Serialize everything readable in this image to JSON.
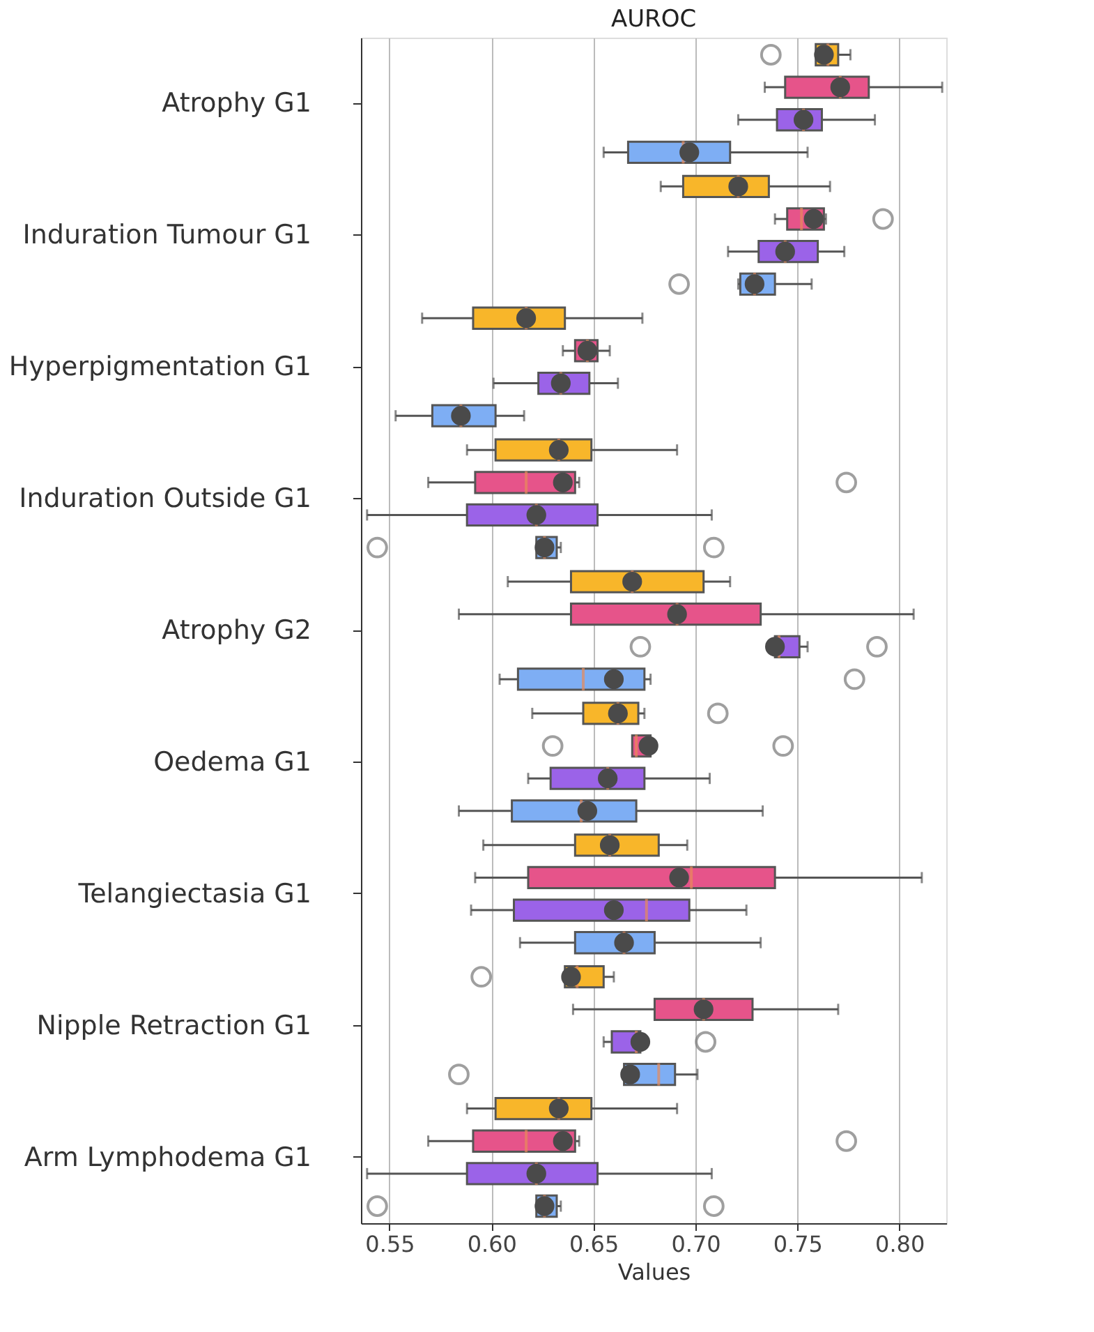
{
  "chart_data": {
    "type": "box",
    "title": "AUROC",
    "xlabel": "Values",
    "orientation": "horizontal",
    "categories": [
      "Atrophy G1",
      "Induration Tumour G1",
      "Hyperpigmentation G1",
      "Induration Outside G1",
      "Atrophy G2",
      "Oedema G1",
      "Telangiectasia G1",
      "Nipple Retraction G1",
      "Arm Lymphodema G1"
    ],
    "xlim": [
      0.536,
      0.823
    ],
    "xticks": [
      0.55,
      {
        "value": 0.6,
        "label": "0.60"
      },
      0.65,
      {
        "value": 0.7,
        "label": "0.70"
      },
      0.75,
      {
        "value": 0.8,
        "label": "0.80"
      }
    ],
    "grid": "x",
    "legend": false,
    "series": [
      {
        "color": "#f8b62a",
        "boxes": [
          {
            "low": 0.759,
            "q1": 0.759,
            "median": 0.765,
            "q3": 0.77,
            "high": 0.776,
            "mean": 0.763,
            "outliers": [
              0.737
            ]
          },
          {
            "low": 0.683,
            "q1": 0.694,
            "median": 0.721,
            "q3": 0.736,
            "high": 0.766,
            "mean": 0.721
          },
          {
            "low": 0.566,
            "q1": 0.591,
            "median": 0.617,
            "q3": 0.636,
            "high": 0.674,
            "mean": 0.617
          },
          {
            "low": 0.588,
            "q1": 0.602,
            "median": 0.633,
            "q3": 0.649,
            "high": 0.691,
            "mean": 0.633
          },
          {
            "low": 0.608,
            "q1": 0.639,
            "median": 0.669,
            "q3": 0.704,
            "high": 0.717,
            "mean": 0.669
          },
          {
            "low": 0.62,
            "q1": 0.645,
            "median": 0.662,
            "q3": 0.672,
            "high": 0.675,
            "mean": 0.662,
            "outliers": [
              0.711
            ]
          },
          {
            "low": 0.596,
            "q1": 0.641,
            "median": 0.658,
            "q3": 0.682,
            "high": 0.696,
            "mean": 0.658
          },
          {
            "low": 0.636,
            "q1": 0.636,
            "median": 0.642,
            "q3": 0.655,
            "high": 0.66,
            "mean": 0.639,
            "outliers": [
              0.595
            ]
          },
          {
            "low": 0.588,
            "q1": 0.602,
            "median": 0.633,
            "q3": 0.649,
            "high": 0.691,
            "mean": 0.633
          }
        ]
      },
      {
        "color": "#e6548a",
        "boxes": [
          {
            "low": 0.734,
            "q1": 0.744,
            "median": 0.771,
            "q3": 0.785,
            "high": 0.821,
            "mean": 0.771
          },
          {
            "low": 0.739,
            "q1": 0.745,
            "median": 0.752,
            "q3": 0.763,
            "high": 0.764,
            "mean": 0.758,
            "outliers": [
              0.792
            ]
          },
          {
            "low": 0.635,
            "q1": 0.641,
            "median": 0.647,
            "q3": 0.652,
            "high": 0.658,
            "mean": 0.647
          },
          {
            "low": 0.569,
            "q1": 0.592,
            "median": 0.617,
            "q3": 0.641,
            "high": 0.643,
            "mean": 0.635,
            "outliers": [
              0.774
            ]
          },
          {
            "low": 0.584,
            "q1": 0.639,
            "median": 0.691,
            "q3": 0.732,
            "high": 0.807,
            "mean": 0.691
          },
          {
            "low": 0.669,
            "q1": 0.669,
            "median": 0.671,
            "q3": 0.678,
            "high": 0.68,
            "mean": 0.677,
            "outliers": [
              0.63,
              0.743
            ]
          },
          {
            "low": 0.592,
            "q1": 0.618,
            "median": 0.698,
            "q3": 0.739,
            "high": 0.811,
            "mean": 0.692
          },
          {
            "low": 0.64,
            "q1": 0.68,
            "median": 0.704,
            "q3": 0.728,
            "high": 0.77,
            "mean": 0.704
          },
          {
            "low": 0.569,
            "q1": 0.591,
            "median": 0.617,
            "q3": 0.641,
            "high": 0.643,
            "mean": 0.635,
            "outliers": [
              0.774
            ]
          }
        ]
      },
      {
        "color": "#9b63e8",
        "boxes": [
          {
            "low": 0.721,
            "q1": 0.74,
            "median": 0.753,
            "q3": 0.762,
            "high": 0.788,
            "mean": 0.753
          },
          {
            "low": 0.716,
            "q1": 0.731,
            "median": 0.744,
            "q3": 0.76,
            "high": 0.773,
            "mean": 0.744
          },
          {
            "low": 0.601,
            "q1": 0.623,
            "median": 0.634,
            "q3": 0.648,
            "high": 0.662,
            "mean": 0.634
          },
          {
            "low": 0.539,
            "q1": 0.588,
            "median": 0.622,
            "q3": 0.652,
            "high": 0.708,
            "mean": 0.622
          },
          {
            "low": 0.739,
            "q1": 0.739,
            "median": 0.741,
            "q3": 0.751,
            "high": 0.755,
            "mean": 0.739,
            "outliers": [
              0.673,
              0.789
            ]
          },
          {
            "low": 0.618,
            "q1": 0.629,
            "median": 0.657,
            "q3": 0.675,
            "high": 0.707,
            "mean": 0.657
          },
          {
            "low": 0.59,
            "q1": 0.611,
            "median": 0.676,
            "q3": 0.697,
            "high": 0.725,
            "mean": 0.66
          },
          {
            "low": 0.655,
            "q1": 0.659,
            "median": 0.671,
            "q3": 0.673,
            "high": 0.673,
            "mean": 0.673,
            "outliers": [
              0.705
            ]
          },
          {
            "low": 0.539,
            "q1": 0.588,
            "median": 0.622,
            "q3": 0.652,
            "high": 0.708,
            "mean": 0.622
          }
        ]
      },
      {
        "color": "#7eaef4",
        "boxes": [
          {
            "low": 0.655,
            "q1": 0.667,
            "median": 0.694,
            "q3": 0.717,
            "high": 0.755,
            "mean": 0.697
          },
          {
            "low": 0.721,
            "q1": 0.722,
            "median": 0.729,
            "q3": 0.739,
            "high": 0.757,
            "mean": 0.729,
            "outliers": [
              0.692
            ]
          },
          {
            "low": 0.553,
            "q1": 0.571,
            "median": 0.585,
            "q3": 0.602,
            "high": 0.616,
            "mean": 0.585
          },
          {
            "low": 0.622,
            "q1": 0.622,
            "median": 0.626,
            "q3": 0.632,
            "high": 0.634,
            "mean": 0.626,
            "outliers": [
              0.544,
              0.709
            ]
          },
          {
            "low": 0.604,
            "q1": 0.613,
            "median": 0.645,
            "q3": 0.675,
            "high": 0.678,
            "mean": 0.66,
            "outliers": [
              0.778
            ]
          },
          {
            "low": 0.584,
            "q1": 0.61,
            "median": 0.644,
            "q3": 0.671,
            "high": 0.733,
            "mean": 0.647
          },
          {
            "low": 0.614,
            "q1": 0.641,
            "median": 0.665,
            "q3": 0.68,
            "high": 0.732,
            "mean": 0.665
          },
          {
            "low": 0.665,
            "q1": 0.665,
            "median": 0.682,
            "q3": 0.69,
            "high": 0.701,
            "mean": 0.668,
            "outliers": [
              0.584
            ]
          },
          {
            "low": 0.622,
            "q1": 0.622,
            "median": 0.626,
            "q3": 0.632,
            "high": 0.634,
            "mean": 0.626,
            "outliers": [
              0.544,
              0.709
            ]
          }
        ]
      }
    ]
  }
}
